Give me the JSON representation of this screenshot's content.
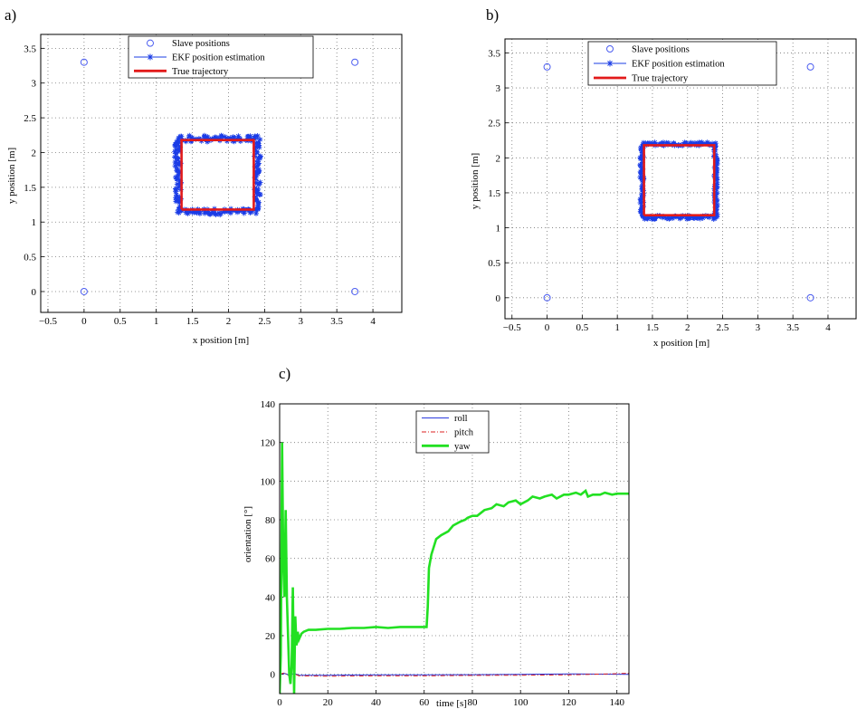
{
  "panels": [
    {
      "label": "a)",
      "chart_data": {
        "type": "scatter",
        "xlabel": "x position [m]",
        "ylabel": "y position [m]",
        "xlim": [
          -0.6,
          4.4
        ],
        "ylim": [
          -0.3,
          3.7
        ],
        "xticks": [
          -0.5,
          0,
          0.5,
          1,
          1.5,
          2,
          2.5,
          3,
          3.5,
          4
        ],
        "yticks": [
          0,
          0.5,
          1,
          1.5,
          2,
          2.5,
          3,
          3.5
        ],
        "xtick_labels": [
          "−0.5",
          "0",
          "0.5",
          "1",
          "1.5",
          "2",
          "2.5",
          "3",
          "3.5",
          "4"
        ],
        "ytick_labels": [
          "0",
          "0.5",
          "1",
          "1.5",
          "2",
          "2.5",
          "3",
          "3.5"
        ],
        "grid": true,
        "legend_position": "top-center",
        "series": [
          {
            "name": "Slave positions",
            "style": "circle-marker",
            "color": "#4a5cf0",
            "points": [
              [
                0,
                0
              ],
              [
                0,
                3.3
              ],
              [
                3.75,
                0
              ],
              [
                3.75,
                3.3
              ]
            ]
          },
          {
            "name": "EKF position estimation",
            "style": "line-star",
            "color": "#1a3ce6",
            "square": [
              1.3,
              2.4,
              1.15,
              2.2
            ],
            "noise": 0.045
          },
          {
            "name": "True trajectory",
            "style": "thick-line",
            "color": "#e21a1a",
            "points": [
              [
                1.35,
                1.18
              ],
              [
                2.35,
                1.18
              ],
              [
                2.35,
                2.18
              ],
              [
                1.35,
                2.18
              ],
              [
                1.35,
                1.18
              ]
            ]
          }
        ]
      }
    },
    {
      "label": "b)",
      "chart_data": {
        "type": "scatter",
        "xlabel": "x position [m]",
        "ylabel": "y position [m]",
        "xlim": [
          -0.6,
          4.4
        ],
        "ylim": [
          -0.3,
          3.7
        ],
        "xticks": [
          -0.5,
          0,
          0.5,
          1,
          1.5,
          2,
          2.5,
          3,
          3.5,
          4
        ],
        "yticks": [
          0,
          0.5,
          1,
          1.5,
          2,
          2.5,
          3,
          3.5
        ],
        "xtick_labels": [
          "−0.5",
          "0",
          "0.5",
          "1",
          "1.5",
          "2",
          "2.5",
          "3",
          "3.5",
          "4"
        ],
        "ytick_labels": [
          "0",
          "0.5",
          "1",
          "1.5",
          "2",
          "2.5",
          "3",
          "3.5"
        ],
        "grid": true,
        "legend_position": "top-center",
        "series": [
          {
            "name": "Slave positions",
            "style": "circle-marker",
            "color": "#4a5cf0",
            "points": [
              [
                0,
                0
              ],
              [
                0,
                3.3
              ],
              [
                3.75,
                0
              ],
              [
                3.75,
                3.3
              ]
            ]
          },
          {
            "name": "EKF position estimation",
            "style": "line-star",
            "color": "#1a3ce6",
            "square": [
              1.35,
              2.4,
              1.15,
              2.2
            ],
            "noise": 0.025
          },
          {
            "name": "True trajectory",
            "style": "thick-line",
            "color": "#e21a1a",
            "points": [
              [
                1.38,
                1.18
              ],
              [
                2.38,
                1.18
              ],
              [
                2.38,
                2.18
              ],
              [
                1.38,
                2.18
              ],
              [
                1.38,
                1.18
              ]
            ]
          }
        ]
      }
    },
    {
      "label": "c)",
      "chart_data": {
        "type": "line",
        "xlabel": "time [s]",
        "ylabel": "orientation [°]",
        "xlim": [
          0,
          145
        ],
        "ylim": [
          -10,
          140
        ],
        "xticks": [
          0,
          20,
          40,
          60,
          80,
          100,
          120,
          140
        ],
        "yticks": [
          0,
          20,
          40,
          60,
          80,
          100,
          120,
          140
        ],
        "xtick_labels": [
          "0",
          "20",
          "40",
          "60",
          "80",
          "100",
          "120",
          "140"
        ],
        "ytick_labels": [
          "0",
          "20",
          "40",
          "60",
          "80",
          "100",
          "120",
          "140"
        ],
        "grid": true,
        "legend_position": "top-center",
        "series": [
          {
            "name": "roll",
            "style": "line",
            "color": "#2233dd",
            "x": [
              0,
              2,
              4,
              6,
              8,
              20,
              40,
              60,
              80,
              100,
              120,
              145
            ],
            "y": [
              0,
              0.5,
              -0.5,
              0.5,
              -0.5,
              -0.5,
              -0.3,
              -0.3,
              -0.2,
              0,
              0.2,
              0
            ]
          },
          {
            "name": "pitch",
            "style": "dash-dot",
            "color": "#dd2222",
            "x": [
              0,
              2,
              4,
              6,
              8,
              20,
              40,
              60,
              80,
              100,
              120,
              145
            ],
            "y": [
              0,
              0.8,
              -0.8,
              0.3,
              -0.8,
              -1,
              -0.8,
              -0.8,
              -0.6,
              -0.5,
              -0.3,
              0.5
            ]
          },
          {
            "name": "yaw",
            "style": "thick-line",
            "color": "#22e022",
            "x": [
              0,
              0.5,
              1,
              1.5,
              2,
              2.5,
              3,
              3.5,
              4,
              4.5,
              5,
              5.5,
              6,
              6.5,
              7,
              7.5,
              8,
              9,
              10,
              12,
              15,
              20,
              25,
              30,
              35,
              40,
              45,
              50,
              55,
              61,
              61.5,
              62,
              63,
              65,
              67,
              70,
              72,
              75,
              77,
              78,
              80,
              82,
              85,
              88,
              90,
              93,
              95,
              98,
              100,
              103,
              105,
              108,
              110,
              113,
              115,
              118,
              120,
              123,
              125,
              127,
              128,
              130,
              133,
              135,
              138,
              140,
              145
            ],
            "y": [
              -10,
              10,
              120,
              60,
              40,
              85,
              40,
              20,
              0,
              -5,
              5,
              45,
              -10,
              30,
              15,
              22,
              18,
              21,
              22,
              23,
              23,
              23.5,
              23.5,
              24,
              24,
              24.5,
              24,
              24.5,
              24.5,
              24.5,
              35,
              55,
              62,
              70,
              72,
              74,
              77,
              79,
              80,
              81,
              82,
              82,
              85,
              86,
              88,
              87,
              89,
              90,
              88,
              90,
              92,
              91,
              92,
              93,
              91,
              93,
              93,
              94,
              93,
              95,
              92,
              93,
              93,
              94,
              93,
              93.5,
              93.5
            ]
          }
        ]
      }
    }
  ]
}
